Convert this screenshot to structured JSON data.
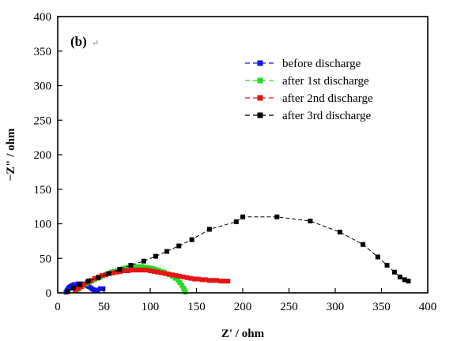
{
  "chart_data": {
    "type": "scatter",
    "panel_label": "(b)",
    "panel_mark": "↵",
    "xlabel": "Z' / ohm",
    "ylabel": "−Z\" / ohm",
    "xlim": [
      0,
      400
    ],
    "ylim": [
      0,
      400
    ],
    "x_ticks": [
      0,
      50,
      100,
      150,
      200,
      250,
      300,
      350,
      400
    ],
    "y_ticks": [
      0,
      50,
      100,
      150,
      200,
      250,
      300,
      350,
      400
    ],
    "grid": false,
    "legend_position": "upper-right",
    "series": [
      {
        "name": "before discharge",
        "color": "#1414e6",
        "marker": "square",
        "line": "dashed",
        "points": [
          [
            9,
            1
          ],
          [
            10,
            3
          ],
          [
            11,
            5
          ],
          [
            12,
            7
          ],
          [
            13,
            8
          ],
          [
            14,
            9
          ],
          [
            15,
            10
          ],
          [
            16,
            11
          ],
          [
            18,
            12
          ],
          [
            20,
            12
          ],
          [
            22,
            13
          ],
          [
            24,
            13
          ],
          [
            26,
            13
          ],
          [
            28,
            12
          ],
          [
            30,
            11
          ],
          [
            32,
            10
          ],
          [
            34,
            9
          ],
          [
            36,
            7
          ],
          [
            38,
            5
          ],
          [
            40,
            3
          ],
          [
            43,
            4
          ],
          [
            46,
            6
          ],
          [
            49,
            6
          ]
        ]
      },
      {
        "name": "after 1st discharge",
        "color": "#22dd22",
        "marker": "square",
        "line": "dashed",
        "points": [
          [
            20,
            3
          ],
          [
            22,
            5
          ],
          [
            24,
            7
          ],
          [
            26,
            9
          ],
          [
            28,
            11
          ],
          [
            31,
            13
          ],
          [
            34,
            15
          ],
          [
            37,
            17
          ],
          [
            40,
            19
          ],
          [
            43,
            21
          ],
          [
            46,
            23
          ],
          [
            49,
            25
          ],
          [
            52,
            27
          ],
          [
            55,
            28
          ],
          [
            58,
            30
          ],
          [
            61,
            31
          ],
          [
            64,
            32
          ],
          [
            67,
            34
          ],
          [
            70,
            35
          ],
          [
            73,
            36
          ],
          [
            76,
            37
          ],
          [
            79,
            37
          ],
          [
            82,
            38
          ],
          [
            85,
            38
          ],
          [
            88,
            38
          ],
          [
            91,
            38
          ],
          [
            94,
            37
          ],
          [
            97,
            37
          ],
          [
            100,
            36
          ],
          [
            103,
            35
          ],
          [
            106,
            34
          ],
          [
            109,
            33
          ],
          [
            112,
            31
          ],
          [
            115,
            30
          ],
          [
            118,
            28
          ],
          [
            121,
            26
          ],
          [
            124,
            24
          ],
          [
            127,
            21
          ],
          [
            130,
            18
          ],
          [
            132,
            15
          ],
          [
            134,
            11
          ],
          [
            136,
            7
          ],
          [
            137,
            4
          ],
          [
            138,
            1
          ]
        ]
      },
      {
        "name": "after 2nd discharge",
        "color": "#e61414",
        "marker": "square",
        "line": "dashed",
        "points": [
          [
            19,
            3
          ],
          [
            22,
            6
          ],
          [
            25,
            9
          ],
          [
            28,
            12
          ],
          [
            32,
            15
          ],
          [
            36,
            18
          ],
          [
            40,
            21
          ],
          [
            44,
            23
          ],
          [
            48,
            25
          ],
          [
            52,
            26
          ],
          [
            56,
            28
          ],
          [
            60,
            29
          ],
          [
            64,
            30
          ],
          [
            68,
            31
          ],
          [
            72,
            32
          ],
          [
            76,
            32
          ],
          [
            80,
            33
          ],
          [
            84,
            33
          ],
          [
            88,
            33
          ],
          [
            92,
            33
          ],
          [
            96,
            33
          ],
          [
            100,
            32
          ],
          [
            104,
            31
          ],
          [
            108,
            30
          ],
          [
            112,
            29
          ],
          [
            116,
            28
          ],
          [
            120,
            27
          ],
          [
            124,
            26
          ],
          [
            128,
            25
          ],
          [
            132,
            24
          ],
          [
            136,
            23
          ],
          [
            140,
            22
          ],
          [
            144,
            21
          ],
          [
            148,
            20
          ],
          [
            152,
            20
          ],
          [
            156,
            19
          ],
          [
            160,
            19
          ],
          [
            164,
            18
          ],
          [
            168,
            18
          ],
          [
            172,
            18
          ],
          [
            176,
            17
          ],
          [
            180,
            17
          ],
          [
            184,
            17
          ]
        ]
      },
      {
        "name": "after 3rd discharge",
        "color": "#000000",
        "marker": "square",
        "line": "dashed",
        "points": [
          [
            11,
            2
          ],
          [
            17,
            7
          ],
          [
            24,
            12
          ],
          [
            33,
            17
          ],
          [
            44,
            22
          ],
          [
            55,
            28
          ],
          [
            67,
            34
          ],
          [
            79,
            40
          ],
          [
            93,
            46
          ],
          [
            106,
            53
          ],
          [
            118,
            60
          ],
          [
            131,
            68
          ],
          [
            145,
            77
          ],
          [
            164,
            92
          ],
          [
            193,
            103
          ],
          [
            200,
            110
          ],
          [
            237,
            110
          ],
          [
            273,
            104
          ],
          [
            305,
            88
          ],
          [
            330,
            70
          ],
          [
            346,
            52
          ],
          [
            356,
            40
          ],
          [
            364,
            30
          ],
          [
            370,
            23
          ],
          [
            375,
            19
          ],
          [
            379,
            17
          ]
        ]
      }
    ]
  }
}
